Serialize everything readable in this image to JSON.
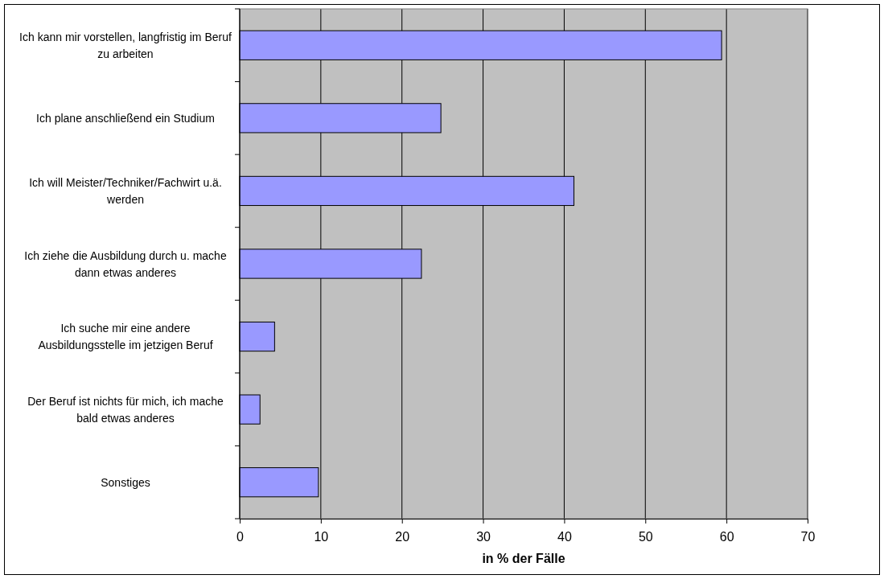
{
  "chart_data": {
    "type": "bar",
    "orientation": "horizontal",
    "xlabel": "in % der Fälle",
    "categories": [
      "Ich kann mir vorstellen, langfristig im Beruf zu arbeiten",
      "Ich plane anschließend ein Studium",
      "Ich will Meister/Techniker/Fachwirt u.ä. werden",
      "Ich ziehe die Ausbildung durch u. mache dann etwas anderes",
      "Ich suche mir eine andere Ausbildungsstelle im jetzigen Beruf",
      "Der Beruf ist nichts für mich, ich mache bald etwas anderes",
      "Sonstiges"
    ],
    "values": [
      59.4,
      24.8,
      41.2,
      22.4,
      4.3,
      2.5,
      9.7
    ],
    "color": "#9999ff",
    "xlim": [
      0,
      70
    ],
    "xticks": [
      0,
      10,
      20,
      30,
      40,
      50,
      60,
      70
    ],
    "grid": "x"
  }
}
